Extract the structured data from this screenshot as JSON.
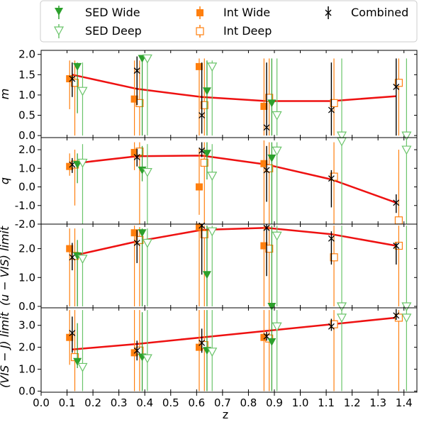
{
  "colors": {
    "sed_wide": "#2ca02c",
    "sed_deep": "#6ac46a",
    "int_wide": "#ff7f0e",
    "int_deep": "#ff7f0e",
    "combined": "#000000",
    "fit_line": "#ee1111"
  },
  "legend": {
    "sed_wide": "SED Wide",
    "sed_deep": "SED Deep",
    "int_wide": "Int Wide",
    "int_deep": "Int Deep",
    "combined": "Combined"
  },
  "chart_data": {
    "type": "scatter",
    "xlabel": "z",
    "xlim": [
      0.0,
      1.45
    ],
    "xticks": [
      "0.0",
      "0.1",
      "0.2",
      "0.3",
      "0.4",
      "0.5",
      "0.6",
      "0.7",
      "0.8",
      "0.9",
      "1.0",
      "1.1",
      "1.2",
      "1.3",
      "1.4"
    ],
    "fit_x": [
      0.12,
      0.37,
      0.62,
      0.87,
      1.12,
      1.37
    ],
    "panels": [
      {
        "ylabel": "m",
        "ylim": [
          -0.05,
          2.1
        ],
        "yticks": [
          "0.0",
          "0.5",
          "1.0",
          "1.5",
          "2.0"
        ],
        "fit": [
          1.5,
          1.15,
          0.95,
          0.85,
          0.85,
          0.97
        ],
        "series": {
          "int_wide": [
            [
              0.11,
              1.4,
              0.65,
              1.85
            ],
            [
              0.36,
              0.9,
              0.0,
              1.85
            ],
            [
              0.61,
              1.7,
              0.0,
              1.9
            ],
            [
              0.86,
              0.72,
              0.0,
              1.9
            ]
          ],
          "int_deep": [
            [
              0.13,
              1.3,
              0.0,
              1.85
            ],
            [
              0.38,
              0.8,
              0.0,
              1.85
            ],
            [
              0.63,
              0.75,
              0.0,
              1.9
            ],
            [
              0.88,
              0.93,
              0.0,
              1.9
            ],
            [
              1.13,
              0.8,
              0.0,
              1.9
            ],
            [
              1.38,
              1.3,
              0.0,
              1.9
            ]
          ],
          "combined": [
            [
              0.12,
              1.4,
              0.95,
              1.8
            ],
            [
              0.37,
              1.6,
              0.75,
              1.95
            ],
            [
              0.62,
              0.5,
              0.05,
              1.8
            ],
            [
              0.87,
              0.2,
              0.0,
              1.8
            ],
            [
              1.12,
              0.63,
              0.0,
              1.8
            ],
            [
              1.37,
              1.2,
              0.0,
              1.9
            ]
          ],
          "sed_wide": [
            [
              0.14,
              1.7,
              0.55,
              1.8
            ],
            [
              0.39,
              1.9,
              0.0,
              1.9
            ],
            [
              0.64,
              1.1,
              0.0,
              1.85
            ],
            [
              0.89,
              0.8,
              0.0,
              1.9
            ]
          ],
          "sed_deep": [
            [
              0.16,
              1.1,
              0.0,
              1.8
            ],
            [
              0.41,
              1.9,
              0.0,
              1.9
            ],
            [
              0.66,
              1.7,
              0.0,
              1.85
            ],
            [
              0.91,
              0.5,
              0.0,
              1.9
            ],
            [
              1.16,
              0.0,
              0.0,
              1.9
            ],
            [
              1.41,
              0.0,
              0.0,
              1.9
            ]
          ]
        }
      },
      {
        "ylabel": "q",
        "ylim": [
          -2.0,
          2.65
        ],
        "yticks": [
          "-2.0",
          "-1.0",
          "0.0",
          "1.0",
          "2.0"
        ],
        "fit": [
          1.25,
          1.65,
          1.68,
          1.2,
          0.4,
          -0.85
        ],
        "series": {
          "int_wide": [
            [
              0.11,
              1.1,
              0.6,
              1.8
            ],
            [
              0.36,
              1.85,
              0.9,
              2.4
            ],
            [
              0.61,
              0.0,
              -1.5,
              2.1
            ],
            [
              0.86,
              1.25,
              -2.0,
              2.5
            ]
          ],
          "int_deep": [
            [
              0.13,
              1.2,
              -1.0,
              2.0
            ],
            [
              0.38,
              1.9,
              -2.0,
              2.4
            ],
            [
              0.63,
              1.3,
              -2.0,
              2.4
            ],
            [
              0.88,
              1.0,
              -2.0,
              2.4
            ],
            [
              1.13,
              0.55,
              -2.0,
              2.4
            ],
            [
              1.38,
              -1.8,
              -2.0,
              2.0
            ]
          ],
          "combined": [
            [
              0.12,
              1.2,
              0.75,
              1.55
            ],
            [
              0.37,
              1.6,
              1.1,
              2.05
            ],
            [
              0.62,
              1.95,
              1.6,
              2.4
            ],
            [
              0.87,
              0.9,
              -0.8,
              2.2
            ],
            [
              1.12,
              0.45,
              -1.1,
              0.9
            ],
            [
              1.37,
              -0.85,
              -1.4,
              -0.4
            ]
          ],
          "sed_wide": [
            [
              0.14,
              1.2,
              0.2,
              1.8
            ],
            [
              0.39,
              0.9,
              0.3,
              2.2
            ],
            [
              0.64,
              1.8,
              0.4,
              2.4
            ],
            [
              0.89,
              1.55,
              -2.0,
              2.4
            ]
          ],
          "sed_deep": [
            [
              0.16,
              1.3,
              -2.0,
              2.3
            ],
            [
              0.41,
              0.8,
              -2.0,
              2.3
            ],
            [
              0.66,
              0.6,
              -2.0,
              2.3
            ],
            [
              0.91,
              1.95,
              -2.0,
              2.4
            ],
            [
              1.16,
              2.45,
              -2.0,
              2.5
            ],
            [
              1.41,
              2.0,
              -2.0,
              2.5
            ]
          ]
        }
      },
      {
        "ylabel": "(u − VIS) limit",
        "ylim": [
          -0.05,
          2.85
        ],
        "yticks": [
          "0.0",
          "1.0",
          "2.0"
        ],
        "fit": [
          1.75,
          2.25,
          2.65,
          2.72,
          2.5,
          2.1
        ],
        "series": {
          "int_wide": [
            [
              0.11,
              2.0,
              0.0,
              2.7
            ],
            [
              0.36,
              2.55,
              0.0,
              2.8
            ],
            [
              0.61,
              2.75,
              0.0,
              2.8
            ],
            [
              0.86,
              2.1,
              0.0,
              2.8
            ]
          ],
          "int_deep": [
            [
              0.13,
              1.75,
              0.0,
              2.7
            ],
            [
              0.38,
              2.3,
              0.0,
              2.75
            ],
            [
              0.63,
              2.5,
              0.0,
              2.8
            ],
            [
              0.88,
              2.0,
              0.0,
              2.8
            ],
            [
              1.13,
              1.7,
              0.0,
              2.8
            ],
            [
              1.38,
              2.1,
              0.0,
              2.8
            ]
          ],
          "combined": [
            [
              0.12,
              1.7,
              1.25,
              2.2
            ],
            [
              0.37,
              2.2,
              1.5,
              2.65
            ],
            [
              0.62,
              2.8,
              1.1,
              2.9
            ],
            [
              0.87,
              2.72,
              1.05,
              2.85
            ],
            [
              1.12,
              2.35,
              1.45,
              2.6
            ],
            [
              1.37,
              2.1,
              1.45,
              2.2
            ]
          ],
          "sed_wide": [
            [
              0.14,
              1.75,
              0.0,
              2.3
            ],
            [
              0.39,
              2.55,
              0.0,
              2.7
            ],
            [
              0.64,
              1.1,
              0.0,
              2.8
            ],
            [
              0.89,
              0.0,
              0.0,
              2.8
            ]
          ],
          "sed_deep": [
            [
              0.16,
              1.65,
              0.0,
              2.7
            ],
            [
              0.41,
              2.2,
              0.0,
              2.7
            ],
            [
              0.66,
              2.6,
              0.0,
              2.8
            ],
            [
              0.91,
              2.45,
              0.0,
              2.8
            ],
            [
              1.16,
              0.0,
              0.0,
              2.8
            ],
            [
              1.41,
              0.0,
              0.0,
              2.8
            ]
          ]
        }
      },
      {
        "ylabel": "(VIS − J) limit",
        "ylim": [
          -0.05,
          3.8
        ],
        "yticks": [
          "0.0",
          "1.0",
          "2.0",
          "3.0"
        ],
        "fit": [
          1.9,
          2.15,
          2.45,
          2.75,
          3.05,
          3.35
        ],
        "series": {
          "int_wide": [
            [
              0.11,
              2.45,
              1.2,
              3.7
            ],
            [
              0.36,
              1.75,
              0.0,
              3.7
            ],
            [
              0.61,
              2.0,
              0.0,
              3.7
            ],
            [
              0.86,
              2.45,
              0.0,
              3.7
            ]
          ],
          "int_deep": [
            [
              0.13,
              1.55,
              0.0,
              3.7
            ],
            [
              0.38,
              1.85,
              0.0,
              3.7
            ],
            [
              0.63,
              2.1,
              0.0,
              3.7
            ],
            [
              0.88,
              2.4,
              0.0,
              3.7
            ],
            [
              1.13,
              3.05,
              0.0,
              3.7
            ],
            [
              1.38,
              3.35,
              0.0,
              3.7
            ]
          ],
          "combined": [
            [
              0.12,
              2.65,
              1.75,
              3.4
            ],
            [
              0.37,
              1.85,
              1.4,
              2.3
            ],
            [
              0.62,
              2.2,
              1.75,
              2.85
            ],
            [
              0.87,
              2.5,
              2.3,
              2.7
            ],
            [
              1.12,
              2.95,
              2.75,
              3.3
            ],
            [
              1.37,
              3.45,
              3.25,
              3.75
            ]
          ],
          "sed_wide": [
            [
              0.14,
              1.35,
              1.05,
              3.1
            ],
            [
              0.39,
              1.55,
              0.0,
              3.6
            ],
            [
              0.64,
              1.85,
              0.0,
              3.7
            ],
            [
              0.89,
              2.25,
              0.0,
              3.7
            ]
          ],
          "sed_deep": [
            [
              0.16,
              1.1,
              0.0,
              3.7
            ],
            [
              0.41,
              1.5,
              0.0,
              3.7
            ],
            [
              0.66,
              1.8,
              0.0,
              3.7
            ],
            [
              0.91,
              2.95,
              0.0,
              3.7
            ],
            [
              1.16,
              3.35,
              0.0,
              3.7
            ],
            [
              1.41,
              3.35,
              0.0,
              3.7
            ]
          ]
        }
      }
    ]
  }
}
